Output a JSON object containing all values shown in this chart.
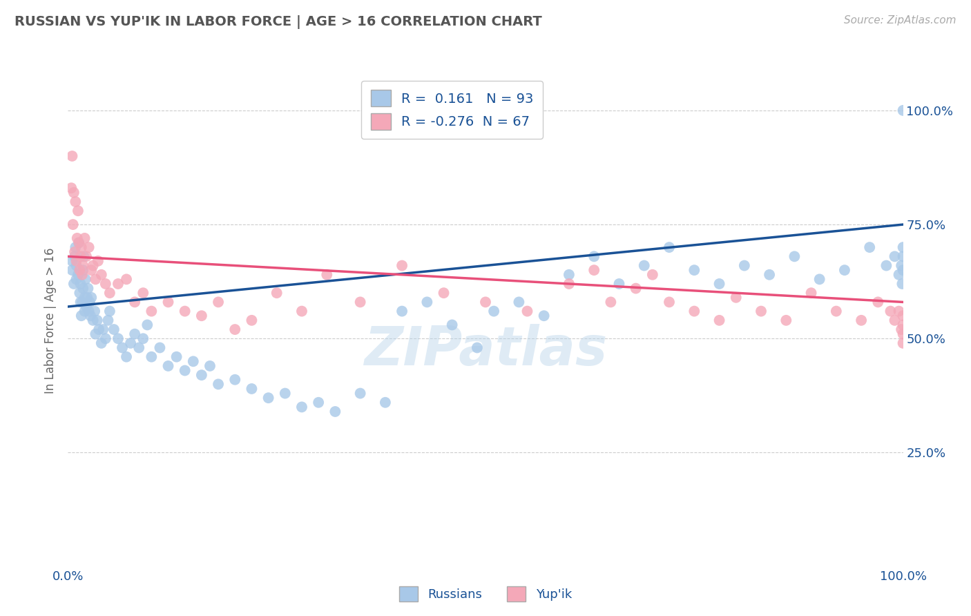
{
  "title": "RUSSIAN VS YUP'IK IN LABOR FORCE | AGE > 16 CORRELATION CHART",
  "source_text": "Source: ZipAtlas.com",
  "ylabel": "In Labor Force | Age > 16",
  "xlim": [
    0.0,
    1.0
  ],
  "ylim": [
    0.0,
    1.08
  ],
  "xtick_labels": [
    "0.0%",
    "100.0%"
  ],
  "ytick_labels": [
    "25.0%",
    "50.0%",
    "75.0%",
    "100.0%"
  ],
  "ytick_positions": [
    0.25,
    0.5,
    0.75,
    1.0
  ],
  "grid_color": "#cccccc",
  "background_color": "#ffffff",
  "russian_color": "#a8c8e8",
  "yupik_color": "#f4a8b8",
  "russian_line_color": "#1a5296",
  "yupik_line_color": "#e8507a",
  "legend_text_color": "#1a5296",
  "title_color": "#555555",
  "source_color": "#aaaaaa",
  "watermark": "ZIPatlas",
  "R_russian": "0.161",
  "N_russian": "93",
  "R_yupik": "-0.276",
  "N_yupik": "67",
  "russian_points_x": [
    0.005,
    0.005,
    0.007,
    0.008,
    0.009,
    0.01,
    0.01,
    0.012,
    0.013,
    0.014,
    0.015,
    0.015,
    0.016,
    0.017,
    0.018,
    0.018,
    0.019,
    0.02,
    0.02,
    0.021,
    0.022,
    0.023,
    0.024,
    0.025,
    0.026,
    0.027,
    0.028,
    0.03,
    0.032,
    0.033,
    0.035,
    0.037,
    0.04,
    0.042,
    0.045,
    0.048,
    0.05,
    0.055,
    0.06,
    0.065,
    0.07,
    0.075,
    0.08,
    0.085,
    0.09,
    0.095,
    0.1,
    0.11,
    0.12,
    0.13,
    0.14,
    0.15,
    0.16,
    0.17,
    0.18,
    0.2,
    0.22,
    0.24,
    0.26,
    0.28,
    0.3,
    0.32,
    0.35,
    0.38,
    0.4,
    0.43,
    0.46,
    0.49,
    0.51,
    0.54,
    0.57,
    0.6,
    0.63,
    0.66,
    0.69,
    0.72,
    0.75,
    0.78,
    0.81,
    0.84,
    0.87,
    0.9,
    0.93,
    0.96,
    0.98,
    0.99,
    0.995,
    0.998,
    0.999,
    1.0,
    1.0,
    1.0,
    1.0
  ],
  "russian_points_y": [
    0.67,
    0.65,
    0.62,
    0.68,
    0.7,
    0.66,
    0.63,
    0.64,
    0.71,
    0.6,
    0.58,
    0.62,
    0.55,
    0.58,
    0.61,
    0.65,
    0.68,
    0.59,
    0.56,
    0.63,
    0.57,
    0.59,
    0.61,
    0.56,
    0.58,
    0.55,
    0.59,
    0.54,
    0.56,
    0.51,
    0.54,
    0.52,
    0.49,
    0.52,
    0.5,
    0.54,
    0.56,
    0.52,
    0.5,
    0.48,
    0.46,
    0.49,
    0.51,
    0.48,
    0.5,
    0.53,
    0.46,
    0.48,
    0.44,
    0.46,
    0.43,
    0.45,
    0.42,
    0.44,
    0.4,
    0.41,
    0.39,
    0.37,
    0.38,
    0.35,
    0.36,
    0.34,
    0.38,
    0.36,
    0.56,
    0.58,
    0.53,
    0.48,
    0.56,
    0.58,
    0.55,
    0.64,
    0.68,
    0.62,
    0.66,
    0.7,
    0.65,
    0.62,
    0.66,
    0.64,
    0.68,
    0.63,
    0.65,
    0.7,
    0.66,
    0.68,
    0.64,
    0.66,
    0.62,
    0.68,
    0.65,
    0.7,
    1.0
  ],
  "yupik_points_x": [
    0.004,
    0.005,
    0.006,
    0.007,
    0.008,
    0.009,
    0.01,
    0.011,
    0.012,
    0.013,
    0.014,
    0.015,
    0.016,
    0.017,
    0.018,
    0.02,
    0.022,
    0.025,
    0.028,
    0.03,
    0.033,
    0.036,
    0.04,
    0.045,
    0.05,
    0.06,
    0.07,
    0.08,
    0.09,
    0.1,
    0.12,
    0.14,
    0.16,
    0.18,
    0.2,
    0.22,
    0.25,
    0.28,
    0.31,
    0.35,
    0.4,
    0.45,
    0.5,
    0.55,
    0.6,
    0.63,
    0.65,
    0.68,
    0.7,
    0.72,
    0.75,
    0.78,
    0.8,
    0.83,
    0.86,
    0.89,
    0.92,
    0.95,
    0.97,
    0.985,
    0.99,
    0.995,
    0.998,
    1.0,
    1.0,
    1.0,
    1.0
  ],
  "yupik_points_y": [
    0.83,
    0.9,
    0.75,
    0.82,
    0.69,
    0.8,
    0.67,
    0.72,
    0.78,
    0.71,
    0.65,
    0.68,
    0.7,
    0.64,
    0.66,
    0.72,
    0.68,
    0.7,
    0.65,
    0.66,
    0.63,
    0.67,
    0.64,
    0.62,
    0.6,
    0.62,
    0.63,
    0.58,
    0.6,
    0.56,
    0.58,
    0.56,
    0.55,
    0.58,
    0.52,
    0.54,
    0.6,
    0.56,
    0.64,
    0.58,
    0.66,
    0.6,
    0.58,
    0.56,
    0.62,
    0.65,
    0.58,
    0.61,
    0.64,
    0.58,
    0.56,
    0.54,
    0.59,
    0.56,
    0.54,
    0.6,
    0.56,
    0.54,
    0.58,
    0.56,
    0.54,
    0.56,
    0.52,
    0.55,
    0.53,
    0.51,
    0.49
  ]
}
